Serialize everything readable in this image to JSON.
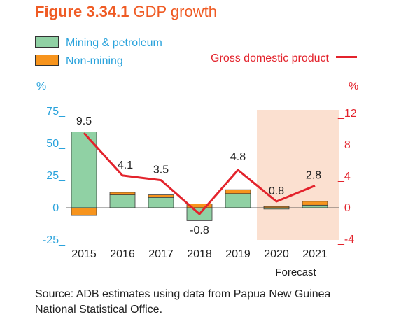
{
  "title": {
    "number": "Figure 3.34.1",
    "text": "GDP growth"
  },
  "legend": {
    "mining": "Mining & petroleum",
    "nonmining": "Non-mining",
    "gdp": "Gross domestic product"
  },
  "source": "Source: ADB estimates using data from Papua New Guinea National Statistical Office.",
  "forecast_label": "Forecast",
  "colors": {
    "mining": "#90d1a4",
    "nonmining": "#f7941d",
    "gdp": "#e3232c",
    "axis_left": "#2aa3dc",
    "axis_right": "#e3232c",
    "forecast_band": "#fbe0d0",
    "title": "#ef5b24"
  },
  "chart_data": {
    "type": "bar",
    "categories": [
      "2015",
      "2016",
      "2017",
      "2018",
      "2019",
      "2020",
      "2021"
    ],
    "series": [
      {
        "name": "Mining & petroleum",
        "axis": "left",
        "values": [
          59,
          10,
          8,
          -10,
          11,
          -1,
          2
        ]
      },
      {
        "name": "Non-mining",
        "axis": "left",
        "values": [
          -6,
          2,
          2,
          3,
          3,
          1,
          3
        ]
      },
      {
        "name": "Gross domestic product",
        "type": "line",
        "axis": "right",
        "values": [
          9.5,
          4.1,
          3.5,
          -0.8,
          4.8,
          0.8,
          2.8
        ]
      }
    ],
    "data_labels": [
      "9.5",
      "4.1",
      "3.5",
      "-0.8",
      "4.8",
      "0.8",
      "2.8"
    ],
    "left_axis": {
      "unit": "%",
      "ylim": [
        -25,
        75
      ],
      "ticks": [
        "-25_",
        "0_",
        "25_",
        "50_",
        "75_"
      ],
      "tick_values": [
        -25,
        0,
        25,
        50,
        75
      ]
    },
    "right_axis": {
      "unit": "%",
      "ylim": [
        -4,
        12
      ],
      "ticks": [
        "_-4",
        "_0",
        "_4",
        "_8",
        "_12"
      ],
      "tick_values": [
        -4,
        0,
        4,
        8,
        12
      ]
    },
    "forecast_categories": [
      "2020",
      "2021"
    ],
    "stacked": true,
    "grid": false
  }
}
